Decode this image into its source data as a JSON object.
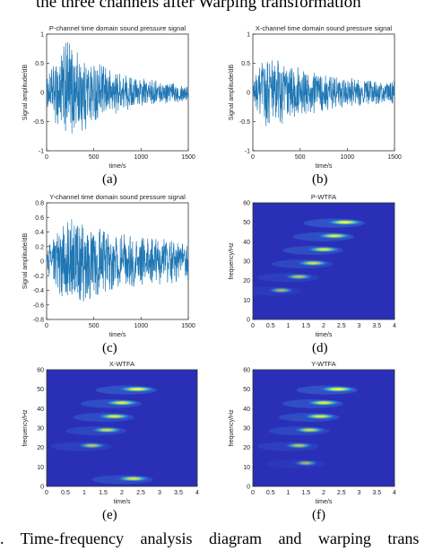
{
  "header_text": "the three channels after Warping transformation",
  "footer_text": ". Time-frequency analysis diagram and warping trans",
  "colors": {
    "signal": "#1f77b4",
    "axis": "#333333"
  },
  "chart_data": [
    {
      "type": "line",
      "panel_label": "(a)",
      "title": "P-channel time domain sound pressure signal",
      "xlabel": "time/s",
      "ylabel": "Signal amplitude/dB",
      "xlim": [
        0,
        1500
      ],
      "ylim": [
        -1,
        1
      ],
      "xticks": [
        0,
        500,
        1000,
        1500
      ],
      "yticks": [
        -1,
        -0.5,
        0,
        0.5,
        1
      ],
      "envelope": {
        "onset": 0,
        "peak_x": 220,
        "peak_amplitude": 0.95,
        "end_x": 1500,
        "end_amplitude": 0.12
      }
    },
    {
      "type": "line",
      "panel_label": "(b)",
      "title": "X-channel time domain sound pressure signal",
      "xlabel": "time/s",
      "ylabel": "Signal amplitude/dB",
      "xlim": [
        0,
        1500
      ],
      "ylim": [
        -1,
        1
      ],
      "xticks": [
        0,
        500,
        1000,
        1500
      ],
      "yticks": [
        -1,
        -0.5,
        0,
        0.5,
        1
      ],
      "envelope": {
        "onset": 0,
        "peak_x": 150,
        "peak_amplitude": 0.75,
        "end_x": 1500,
        "end_amplitude": 0.18
      }
    },
    {
      "type": "line",
      "panel_label": "(c)",
      "title": "Y-channel time domain sound pressure signal",
      "xlabel": "time/s",
      "ylabel": "Signal amplitude/dB",
      "xlim": [
        0,
        1500
      ],
      "ylim": [
        -0.8,
        0.8
      ],
      "xticks": [
        0,
        500,
        1000,
        1500
      ],
      "yticks": [
        -0.8,
        -0.6,
        -0.4,
        -0.2,
        0,
        0.2,
        0.4,
        0.6,
        0.8
      ],
      "envelope": {
        "onset": 0,
        "peak_x": 250,
        "peak_amplitude": 0.7,
        "end_x": 1500,
        "end_amplitude": 0.28
      }
    },
    {
      "type": "heatmap",
      "panel_label": "(d)",
      "title": "P-WTFA",
      "xlabel": "time/s",
      "ylabel": "frequency/Hz",
      "xlim": [
        0,
        4
      ],
      "ylim": [
        0,
        60
      ],
      "xticks": [
        0,
        0.5,
        1,
        1.5,
        2,
        2.5,
        3,
        3.5,
        4
      ],
      "yticks": [
        0,
        10,
        20,
        30,
        40,
        50,
        60
      ],
      "hotspots": [
        {
          "t": 2.6,
          "f": 50,
          "intensity": 1.0
        },
        {
          "t": 2.3,
          "f": 43,
          "intensity": 0.85
        },
        {
          "t": 2.0,
          "f": 36,
          "intensity": 0.8
        },
        {
          "t": 1.7,
          "f": 29,
          "intensity": 0.7
        },
        {
          "t": 1.3,
          "f": 22,
          "intensity": 0.45
        },
        {
          "t": 0.8,
          "f": 15,
          "intensity": 0.3
        }
      ]
    },
    {
      "type": "heatmap",
      "panel_label": "(e)",
      "title": "X-WTFA",
      "xlabel": "time/s",
      "ylabel": "frequency/Hz",
      "xlim": [
        0,
        4
      ],
      "ylim": [
        0,
        60
      ],
      "xticks": [
        0,
        0.5,
        1,
        1.5,
        2,
        2.5,
        3,
        3.5,
        4
      ],
      "yticks": [
        0,
        10,
        20,
        30,
        40,
        50,
        60
      ],
      "hotspots": [
        {
          "t": 2.4,
          "f": 50,
          "intensity": 1.0
        },
        {
          "t": 2.0,
          "f": 43,
          "intensity": 0.85
        },
        {
          "t": 1.8,
          "f": 36,
          "intensity": 0.8
        },
        {
          "t": 1.6,
          "f": 29,
          "intensity": 0.65
        },
        {
          "t": 1.2,
          "f": 21,
          "intensity": 0.45
        },
        {
          "t": 2.3,
          "f": 4,
          "intensity": 0.75
        }
      ]
    },
    {
      "type": "heatmap",
      "panel_label": "(f)",
      "title": "Y-WTFA",
      "xlabel": "time/s",
      "ylabel": "frequency/Hz",
      "xlim": [
        0,
        4
      ],
      "ylim": [
        0,
        60
      ],
      "xticks": [
        0,
        0.5,
        1,
        1.5,
        2,
        2.5,
        3,
        3.5,
        4
      ],
      "yticks": [
        0,
        10,
        20,
        30,
        40,
        50,
        60
      ],
      "hotspots": [
        {
          "t": 2.4,
          "f": 50,
          "intensity": 1.0
        },
        {
          "t": 2.0,
          "f": 43,
          "intensity": 0.85
        },
        {
          "t": 1.9,
          "f": 36,
          "intensity": 0.8
        },
        {
          "t": 1.6,
          "f": 29,
          "intensity": 0.65
        },
        {
          "t": 1.3,
          "f": 21,
          "intensity": 0.45
        },
        {
          "t": 1.5,
          "f": 12,
          "intensity": 0.25
        }
      ]
    }
  ]
}
